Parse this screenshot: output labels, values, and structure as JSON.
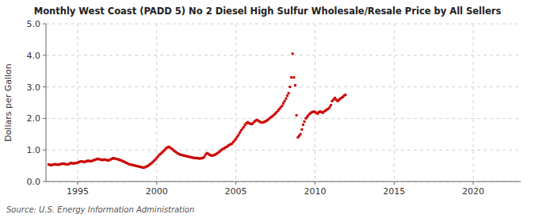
{
  "chart_data": {
    "type": "scatter",
    "title": "Monthly West Coast (PADD 5) No 2 Diesel High Sulfur Wholesale/Resale Price by All Sellers",
    "y_label": "Dollars per Gallon",
    "source": "Source: U.S. Energy Information Administration",
    "color": "#cc0000",
    "marker": "square",
    "grid": true,
    "xlim": [
      1993.0,
      2023.0
    ],
    "ylim": [
      0.0,
      5.0
    ],
    "xticks": [
      1995,
      2000,
      2005,
      2010,
      2015,
      2020
    ],
    "yticks": [
      {
        "value": 0.0,
        "label": "0.0"
      },
      {
        "value": 1.0,
        "label": "1.0"
      },
      {
        "value": 2.0,
        "label": "2.0"
      },
      {
        "value": 3.0,
        "label": "3.0"
      },
      {
        "value": 4.0,
        "label": "4.0"
      },
      {
        "value": 5.0,
        "label": "5.0"
      }
    ],
    "x": [
      1993.17,
      1993.25,
      1993.33,
      1993.42,
      1993.5,
      1993.58,
      1993.67,
      1993.75,
      1993.83,
      1993.92,
      1994.0,
      1994.08,
      1994.17,
      1994.25,
      1994.33,
      1994.42,
      1994.5,
      1994.58,
      1994.67,
      1994.75,
      1994.83,
      1994.92,
      1995.0,
      1995.08,
      1995.17,
      1995.25,
      1995.33,
      1995.42,
      1995.5,
      1995.58,
      1995.67,
      1995.75,
      1995.83,
      1995.92,
      1996.0,
      1996.08,
      1996.17,
      1996.25,
      1996.33,
      1996.42,
      1996.5,
      1996.58,
      1996.67,
      1996.75,
      1996.83,
      1996.92,
      1997.0,
      1997.08,
      1997.17,
      1997.25,
      1997.33,
      1997.42,
      1997.5,
      1997.58,
      1997.67,
      1997.75,
      1997.83,
      1997.92,
      1998.0,
      1998.08,
      1998.17,
      1998.25,
      1998.33,
      1998.42,
      1998.5,
      1998.58,
      1998.67,
      1998.75,
      1998.83,
      1998.92,
      1999.0,
      1999.08,
      1999.17,
      1999.25,
      1999.33,
      1999.42,
      1999.5,
      1999.58,
      1999.67,
      1999.75,
      1999.83,
      1999.92,
      2000.0,
      2000.08,
      2000.17,
      2000.25,
      2000.33,
      2000.42,
      2000.5,
      2000.58,
      2000.67,
      2000.75,
      2000.83,
      2000.92,
      2001.0,
      2001.08,
      2001.17,
      2001.25,
      2001.33,
      2001.42,
      2001.5,
      2001.58,
      2001.67,
      2001.75,
      2001.83,
      2001.92,
      2002.0,
      2002.08,
      2002.17,
      2002.25,
      2002.33,
      2002.42,
      2002.5,
      2002.58,
      2002.67,
      2002.75,
      2002.83,
      2002.92,
      2003.0,
      2003.08,
      2003.17,
      2003.25,
      2003.33,
      2003.42,
      2003.5,
      2003.58,
      2003.67,
      2003.75,
      2003.83,
      2003.92,
      2004.0,
      2004.08,
      2004.17,
      2004.25,
      2004.33,
      2004.42,
      2004.5,
      2004.58,
      2004.67,
      2004.75,
      2004.83,
      2004.92,
      2005.0,
      2005.08,
      2005.17,
      2005.25,
      2005.33,
      2005.42,
      2005.5,
      2005.58,
      2005.67,
      2005.75,
      2005.83,
      2005.92,
      2006.0,
      2006.08,
      2006.17,
      2006.25,
      2006.33,
      2006.42,
      2006.5,
      2006.58,
      2006.67,
      2006.75,
      2006.83,
      2006.92,
      2007.0,
      2007.08,
      2007.17,
      2007.25,
      2007.33,
      2007.42,
      2007.5,
      2007.58,
      2007.67,
      2007.75,
      2007.83,
      2007.92,
      2008.0,
      2008.08,
      2008.17,
      2008.25,
      2008.33,
      2008.42,
      2008.5,
      2008.58,
      2008.67,
      2008.75,
      2008.83,
      2008.92,
      2009.0,
      2009.08,
      2009.17,
      2009.25,
      2009.33,
      2009.42,
      2009.5,
      2009.58,
      2009.67,
      2009.75,
      2009.83,
      2009.92,
      2010.0,
      2010.08,
      2010.17,
      2010.25,
      2010.33,
      2010.42,
      2010.5,
      2010.58,
      2010.67,
      2010.75,
      2010.83,
      2010.92,
      2011.0,
      2011.08,
      2011.17,
      2011.25,
      2011.33,
      2011.42,
      2011.5,
      2011.58,
      2011.67,
      2011.75,
      2011.83,
      2011.92
    ],
    "values": [
      0.54,
      0.53,
      0.52,
      0.53,
      0.54,
      0.55,
      0.54,
      0.53,
      0.54,
      0.55,
      0.56,
      0.57,
      0.56,
      0.55,
      0.54,
      0.55,
      0.57,
      0.59,
      0.58,
      0.57,
      0.58,
      0.59,
      0.6,
      0.62,
      0.63,
      0.64,
      0.63,
      0.62,
      0.63,
      0.65,
      0.66,
      0.65,
      0.64,
      0.66,
      0.67,
      0.69,
      0.7,
      0.72,
      0.71,
      0.7,
      0.69,
      0.68,
      0.7,
      0.69,
      0.68,
      0.67,
      0.68,
      0.7,
      0.72,
      0.74,
      0.73,
      0.72,
      0.71,
      0.7,
      0.68,
      0.67,
      0.65,
      0.63,
      0.61,
      0.59,
      0.57,
      0.55,
      0.54,
      0.53,
      0.52,
      0.51,
      0.5,
      0.49,
      0.48,
      0.47,
      0.46,
      0.45,
      0.44,
      0.45,
      0.47,
      0.49,
      0.52,
      0.55,
      0.58,
      0.62,
      0.66,
      0.7,
      0.75,
      0.8,
      0.85,
      0.88,
      0.92,
      0.96,
      1.0,
      1.05,
      1.08,
      1.1,
      1.08,
      1.05,
      1.02,
      0.98,
      0.95,
      0.92,
      0.89,
      0.87,
      0.85,
      0.84,
      0.83,
      0.82,
      0.81,
      0.8,
      0.79,
      0.78,
      0.77,
      0.76,
      0.75,
      0.75,
      0.74,
      0.74,
      0.73,
      0.73,
      0.74,
      0.75,
      0.78,
      0.85,
      0.9,
      0.88,
      0.85,
      0.83,
      0.82,
      0.83,
      0.85,
      0.87,
      0.9,
      0.93,
      0.96,
      1.0,
      1.03,
      1.05,
      1.08,
      1.1,
      1.13,
      1.16,
      1.18,
      1.2,
      1.25,
      1.3,
      1.35,
      1.42,
      1.48,
      1.55,
      1.62,
      1.68,
      1.73,
      1.8,
      1.85,
      1.88,
      1.85,
      1.83,
      1.82,
      1.85,
      1.9,
      1.93,
      1.95,
      1.93,
      1.9,
      1.88,
      1.87,
      1.88,
      1.9,
      1.92,
      1.95,
      1.98,
      2.02,
      2.05,
      2.08,
      2.12,
      2.16,
      2.2,
      2.25,
      2.3,
      2.35,
      2.4,
      2.48,
      2.55,
      2.63,
      2.72,
      2.8,
      3.0,
      3.3,
      4.05,
      3.3,
      3.05,
      2.1,
      1.4,
      1.45,
      1.5,
      1.65,
      1.8,
      1.9,
      2.0,
      2.05,
      2.1,
      2.15,
      2.18,
      2.2,
      2.22,
      2.2,
      2.18,
      2.15,
      2.2,
      2.22,
      2.2,
      2.18,
      2.22,
      2.25,
      2.28,
      2.3,
      2.35,
      2.42,
      2.55,
      2.6,
      2.65,
      2.6,
      2.55,
      2.58,
      2.62,
      2.65,
      2.68,
      2.72,
      2.75
    ]
  }
}
